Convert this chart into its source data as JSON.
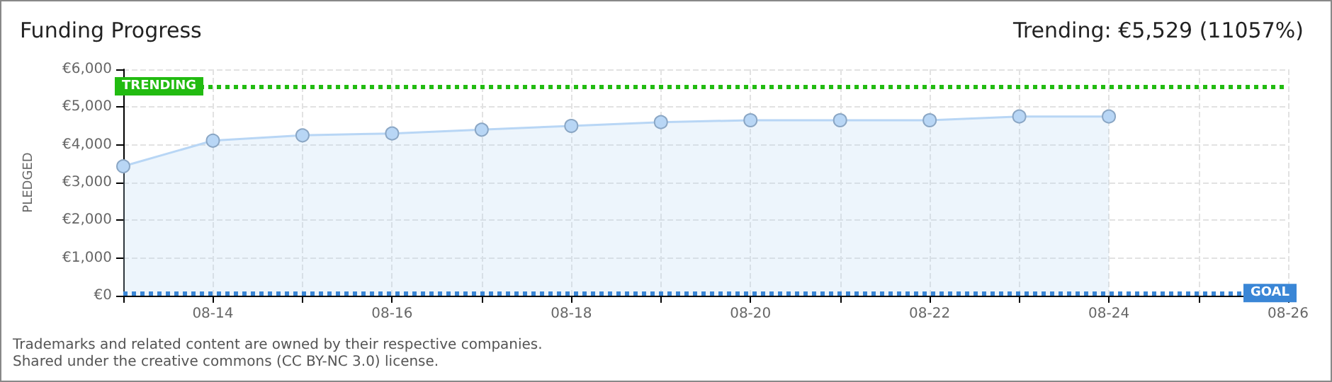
{
  "chart_data": {
    "type": "area",
    "title": "Funding Progress",
    "subtitle": "Trending: €5,529 (11057%)",
    "ylabel": "PLEDGED",
    "categories": [
      null,
      "08-14",
      null,
      "08-16",
      null,
      "08-18",
      null,
      "08-20",
      null,
      "08-22",
      null,
      "08-24",
      null,
      "08-26"
    ],
    "series": [
      {
        "color": "#b8d6f5",
        "values": [
          3430,
          4110,
          4250,
          4300,
          4400,
          4500,
          4600,
          4650,
          4650,
          4650,
          4750,
          4750,
          null,
          null
        ]
      }
    ],
    "ylim": [
      0,
      6000
    ],
    "yticks": [
      {
        "value": 0,
        "label": "€0"
      },
      {
        "value": 1000,
        "label": "€1,000"
      },
      {
        "value": 2000,
        "label": "€2,000"
      },
      {
        "value": 3000,
        "label": "€3,000"
      },
      {
        "value": 4000,
        "label": "€4,000"
      },
      {
        "value": 5000,
        "label": "€5,000"
      },
      {
        "value": 6000,
        "label": "€6,000"
      }
    ],
    "ref_lines": [
      {
        "axis": "y",
        "value": 5529,
        "label": "TRENDING",
        "color": "#22bb11",
        "line_style": "dotted"
      },
      {
        "axis": "y",
        "value": 50,
        "label": "GOAL",
        "color": "#3a86d6",
        "line_style": "dotted"
      }
    ],
    "annotations": [
      "Trademarks and related content are owned by their respective companies.",
      "Shared under the creative commons (CC BY-NC 3.0) license."
    ],
    "grid": true,
    "marker": "circle",
    "line_style": "solid"
  }
}
